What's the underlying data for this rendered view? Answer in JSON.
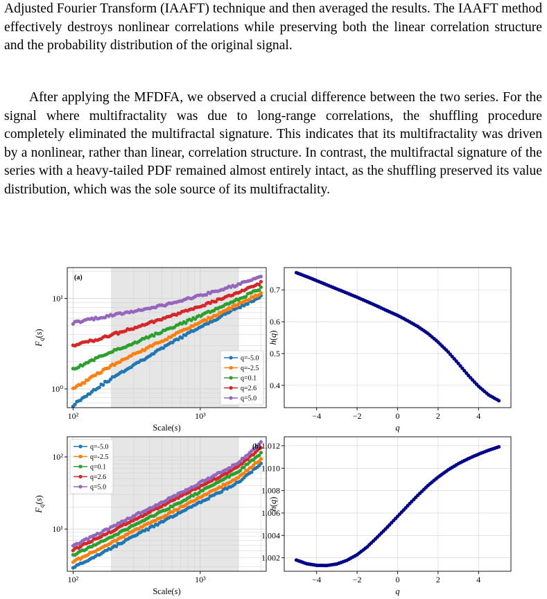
{
  "text": {
    "para1": "Adjusted Fourier Transform (IAAFT) technique and then averaged the results. The IAAFT method effectively destroys nonlinear correlations while preserving both the linear correlation structure and the probability distribution of the original signal.",
    "para2": "After applying the MFDFA, we observed a crucial difference between the two series. For the signal where multifractality was due to long-range correlations, the shuffling procedure completely eliminated the multifractal signature. This indicates that its multifractality was driven by a nonlinear, rather than linear, correlation structure. In contrast, the multifractal signature of the series with a heavy-tailed PDF remained almost entirely intact, as the shuffling preserved its value distribution, which was the sole source of its multifractality."
  },
  "colors": {
    "q_-5.0": "#1f77b4",
    "q_-2.5": "#ff7f0e",
    "q_0.1": "#2ca02c",
    "q_2.6": "#d62728",
    "q_5.0": "#9467bd",
    "hq": "#00008b",
    "shade": "#e6e6e6"
  },
  "chart_data": [
    {
      "type": "line",
      "panel_label": "(a)",
      "xlabel": "Scale(s)",
      "ylabel": "F_q(s)",
      "xscale": "log",
      "yscale": "log",
      "xlim": [
        90,
        3300
      ],
      "ylim": [
        0.62,
        22
      ],
      "xticks": [
        100,
        1000
      ],
      "xtick_labels": [
        "10²",
        "10³"
      ],
      "yticks": [
        1,
        10
      ],
      "ytick_labels": [
        "10⁰",
        "10¹"
      ],
      "shaded_range": [
        200,
        2000
      ],
      "legend_position": "lower right",
      "series": [
        {
          "name": "q=-5.0",
          "x": [
            100,
            120,
            150,
            200,
            300,
            500,
            700,
            1000,
            1500,
            2000,
            3000
          ],
          "y": [
            0.66,
            0.8,
            1.0,
            1.3,
            1.85,
            2.8,
            3.7,
            4.8,
            6.5,
            8.0,
            10.5
          ]
        },
        {
          "name": "q=-2.5",
          "x": [
            100,
            150,
            200,
            300,
            500,
            700,
            1000,
            1500,
            2000,
            3000
          ],
          "y": [
            1.0,
            1.42,
            1.8,
            2.4,
            3.4,
            4.3,
            5.4,
            7.2,
            8.6,
            11.5
          ]
        },
        {
          "name": "q=0.1",
          "x": [
            100,
            150,
            200,
            300,
            500,
            700,
            1000,
            1500,
            2000,
            3000
          ],
          "y": [
            1.65,
            2.15,
            2.55,
            3.2,
            4.3,
            5.2,
            6.4,
            8.2,
            9.8,
            13.0
          ]
        },
        {
          "name": "q=2.6",
          "x": [
            100,
            150,
            200,
            300,
            500,
            700,
            1000,
            1500,
            2000,
            3000
          ],
          "y": [
            3.0,
            3.5,
            3.95,
            4.7,
            5.9,
            6.9,
            8.2,
            10.0,
            11.6,
            15.0
          ]
        },
        {
          "name": "q=5.0",
          "x": [
            100,
            150,
            200,
            300,
            500,
            700,
            1000,
            1500,
            2000,
            3000
          ],
          "y": [
            5.4,
            6.0,
            6.5,
            7.2,
            8.4,
            9.4,
            10.8,
            12.7,
            14.3,
            17.5
          ]
        }
      ]
    },
    {
      "type": "line",
      "xlabel": "q",
      "ylabel": "h(q)",
      "xlim": [
        -5.6,
        5.6
      ],
      "ylim": [
        0.33,
        0.77
      ],
      "xticks": [
        -4,
        -2,
        0,
        2,
        4
      ],
      "xtick_labels": [
        "−4",
        "−2",
        "0",
        "2",
        "4"
      ],
      "yticks": [
        0.4,
        0.5,
        0.6,
        0.7
      ],
      "ytick_labels": [
        "0.4",
        "0.5",
        "0.6",
        "0.7"
      ],
      "series": [
        {
          "name": "",
          "x": [
            -5,
            -4.5,
            -4,
            -3.5,
            -3,
            -2.5,
            -2,
            -1.5,
            -1,
            -0.5,
            0,
            0.5,
            1,
            1.5,
            2,
            2.5,
            3,
            3.5,
            4,
            4.5,
            5
          ],
          "y": [
            0.754,
            0.742,
            0.729,
            0.716,
            0.703,
            0.69,
            0.677,
            0.663,
            0.649,
            0.634,
            0.62,
            0.603,
            0.585,
            0.563,
            0.536,
            0.505,
            0.469,
            0.431,
            0.397,
            0.37,
            0.352
          ]
        }
      ]
    },
    {
      "type": "line",
      "panel_label": "(b)",
      "xlabel": "Scale(s)",
      "ylabel": "F_q(s)",
      "xscale": "log",
      "yscale": "log",
      "xlim": [
        90,
        3300
      ],
      "ylim": [
        2.6,
        190
      ],
      "xticks": [
        100,
        1000
      ],
      "xtick_labels": [
        "10²",
        "10³"
      ],
      "yticks": [
        10,
        100
      ],
      "ytick_labels": [
        "10¹",
        "10²"
      ],
      "shaded_range": [
        200,
        2000
      ],
      "legend_position": "upper left",
      "series": [
        {
          "name": "q=-5.0",
          "x": [
            100,
            150,
            200,
            300,
            500,
            700,
            1000,
            1500,
            2000,
            3000
          ],
          "y": [
            2.9,
            4.2,
            5.4,
            8.0,
            12.5,
            17.0,
            23.5,
            34.0,
            45.0,
            80.0
          ]
        },
        {
          "name": "q=-2.5",
          "x": [
            100,
            150,
            200,
            300,
            500,
            700,
            1000,
            1500,
            2000,
            3000
          ],
          "y": [
            3.5,
            5.0,
            6.4,
            9.4,
            14.6,
            19.8,
            27.5,
            40.0,
            53.0,
            93.0
          ]
        },
        {
          "name": "q=0.1",
          "x": [
            100,
            150,
            200,
            300,
            500,
            700,
            1000,
            1500,
            2000,
            3000
          ],
          "y": [
            4.3,
            6.1,
            7.8,
            11.3,
            17.5,
            23.7,
            33.0,
            48.0,
            63.0,
            112.0
          ]
        },
        {
          "name": "q=2.6",
          "x": [
            100,
            150,
            200,
            300,
            500,
            700,
            1000,
            1500,
            2000,
            3000
          ],
          "y": [
            5.1,
            7.3,
            9.3,
            13.5,
            20.8,
            28.2,
            39.0,
            56.0,
            74.0,
            135.0
          ]
        },
        {
          "name": "q=5.0",
          "x": [
            100,
            150,
            200,
            300,
            500,
            700,
            1000,
            1500,
            2000,
            3000
          ],
          "y": [
            5.8,
            8.3,
            10.5,
            15.2,
            23.5,
            31.8,
            44.0,
            63.0,
            83.0,
            160.0
          ]
        }
      ]
    },
    {
      "type": "line",
      "xlabel": "q",
      "ylabel": "h(q)",
      "xlim": [
        -5.6,
        5.6
      ],
      "ylim": [
        1.0008,
        1.0128
      ],
      "xticks": [
        -4,
        -2,
        0,
        2,
        4
      ],
      "xtick_labels": [
        "−4",
        "−2",
        "0",
        "2",
        "4"
      ],
      "yticks": [
        1.002,
        1.004,
        1.006,
        1.008,
        1.01,
        1.012
      ],
      "ytick_labels": [
        "1.002",
        "1.004",
        "1.006",
        "1.008",
        "1.010",
        "1.012"
      ],
      "series": [
        {
          "name": "",
          "x": [
            -5,
            -4.5,
            -4,
            -3.5,
            -3,
            -2.5,
            -2,
            -1.5,
            -1,
            -0.5,
            0,
            0.5,
            1,
            1.5,
            2,
            2.5,
            3,
            3.5,
            4,
            4.5,
            5
          ],
          "y": [
            1.0018,
            1.00148,
            1.00133,
            1.00132,
            1.00145,
            1.00178,
            1.00228,
            1.00298,
            1.00385,
            1.00475,
            1.0057,
            1.00665,
            1.00758,
            1.00845,
            1.0092,
            1.00985,
            1.0104,
            1.01085,
            1.01125,
            1.0116,
            1.0119
          ]
        }
      ]
    }
  ]
}
